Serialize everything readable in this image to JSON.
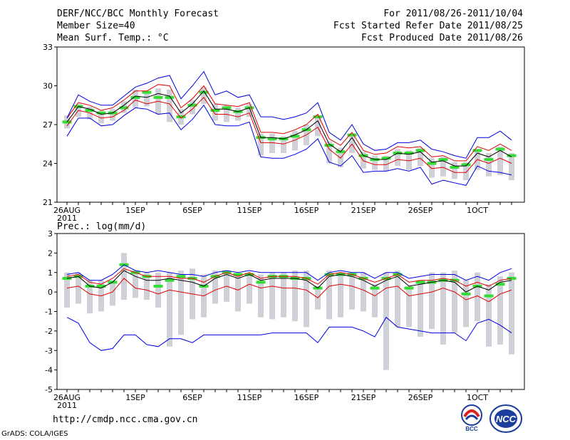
{
  "header": {
    "title": "DERF/NCC/BCC Monthly Forecast",
    "member": "Member Size=40",
    "variable": "Mean Surf. Temp.: °C",
    "period": "For 2011/08/26-2011/10/04",
    "start": "Fcst Started Refer Date 2011/08/25",
    "produced": "Fcst Produced Date 2011/08/26"
  },
  "footer": {
    "url": "http://cmdp.ncc.cma.gov.cn",
    "grads": "GrADS: COLA/IGES",
    "logo_bcc": "BCC",
    "logo_ncc": "NCC"
  },
  "colors": {
    "mean": "#000000",
    "spread": "#e00000",
    "extreme": "#0000e0",
    "box": "#d0d0d8",
    "clim": "#33dd33"
  },
  "chart_data": [
    {
      "type": "line",
      "title": "Mean Surf. Temp.: °C",
      "ylim": [
        21,
        33
      ],
      "yticks": [
        21,
        24,
        27,
        30,
        33
      ],
      "xtick_labels": [
        {
          "day": 0,
          "label": "26AUG",
          "sub": "2011"
        },
        {
          "day": 6,
          "label": "1SEP"
        },
        {
          "day": 11,
          "label": "6SEP"
        },
        {
          "day": 16,
          "label": "11SEP"
        },
        {
          "day": 21,
          "label": "16SEP"
        },
        {
          "day": 26,
          "label": "21SEP"
        },
        {
          "day": 31,
          "label": "26SEP"
        },
        {
          "day": 36,
          "label": "1OCT"
        }
      ],
      "series": [
        {
          "name": "ensemble mean",
          "role": "mean",
          "values": [
            27.2,
            28.4,
            28.2,
            27.8,
            27.9,
            28.5,
            29.2,
            29.1,
            29.4,
            29.2,
            27.9,
            28.6,
            29.6,
            28.2,
            28.2,
            28.0,
            28.3,
            26.0,
            26.0,
            25.9,
            26.2,
            26.6,
            27.3,
            25.5,
            24.9,
            26.0,
            24.6,
            24.3,
            24.3,
            24.8,
            24.7,
            24.9,
            24.1,
            24.2,
            23.8,
            23.8,
            24.8,
            24.5,
            25.0,
            24.5
          ]
        },
        {
          "name": "mean + spread",
          "role": "spread",
          "values": [
            27.5,
            28.7,
            28.5,
            28.1,
            28.3,
            28.9,
            29.6,
            29.6,
            30.1,
            30.0,
            28.3,
            29.0,
            30.0,
            28.6,
            28.5,
            28.4,
            28.7,
            26.4,
            26.4,
            26.3,
            26.6,
            27.0,
            27.8,
            25.9,
            25.4,
            26.4,
            25.0,
            24.7,
            24.8,
            25.3,
            25.2,
            25.3,
            24.5,
            24.6,
            24.2,
            24.2,
            25.3,
            25.0,
            25.5,
            25.0
          ]
        },
        {
          "name": "mean - spread",
          "role": "spread",
          "values": [
            26.9,
            28.1,
            27.9,
            27.5,
            27.6,
            28.1,
            28.9,
            28.6,
            28.8,
            28.6,
            27.5,
            28.2,
            29.1,
            27.8,
            27.8,
            27.6,
            27.9,
            25.6,
            25.6,
            25.5,
            25.8,
            26.2,
            26.8,
            25.1,
            24.4,
            25.5,
            24.2,
            23.9,
            23.9,
            24.3,
            24.2,
            24.4,
            23.6,
            23.7,
            23.3,
            23.3,
            24.3,
            24.0,
            24.4,
            24.0
          ]
        },
        {
          "name": "ensemble max",
          "role": "extreme",
          "values": [
            27.5,
            29.3,
            28.8,
            28.5,
            28.5,
            29.2,
            29.9,
            30.2,
            30.6,
            30.8,
            29.0,
            30.0,
            31.1,
            29.3,
            29.6,
            29.1,
            29.3,
            27.6,
            27.6,
            27.4,
            27.6,
            27.9,
            28.7,
            26.4,
            25.8,
            27.0,
            25.5,
            25.0,
            25.1,
            25.6,
            25.6,
            25.8,
            25.1,
            24.9,
            24.6,
            24.4,
            26.0,
            26.0,
            26.5,
            25.8
          ]
        },
        {
          "name": "ensemble min",
          "role": "extreme",
          "values": [
            26.1,
            27.5,
            27.5,
            26.9,
            27.0,
            27.7,
            28.3,
            28.2,
            27.8,
            27.9,
            26.6,
            27.4,
            28.5,
            27.0,
            26.9,
            26.9,
            27.2,
            24.5,
            24.4,
            24.4,
            24.7,
            25.1,
            25.9,
            24.1,
            23.8,
            24.6,
            23.3,
            23.4,
            23.4,
            23.6,
            23.4,
            23.7,
            22.4,
            22.7,
            22.5,
            22.3,
            23.8,
            23.4,
            23.3,
            23.1
          ]
        }
      ],
      "boxes": {
        "upper": [
          27.7,
          28.6,
          28.4,
          28.1,
          28.2,
          28.8,
          29.7,
          29.5,
          29.8,
          29.7,
          28.2,
          28.9,
          29.9,
          28.6,
          28.5,
          28.3,
          28.6,
          26.3,
          26.3,
          26.1,
          26.5,
          27.0,
          27.6,
          25.7,
          25.2,
          26.3,
          24.9,
          24.6,
          24.6,
          25.1,
          25.0,
          25.2,
          24.4,
          24.5,
          24.1,
          24.1,
          25.1,
          24.8,
          25.3,
          24.8
        ],
        "lower": [
          26.7,
          27.6,
          27.4,
          27.1,
          27.3,
          27.9,
          28.3,
          28.4,
          27.8,
          27.2,
          27.0,
          27.8,
          28.6,
          27.3,
          27.2,
          27.3,
          27.6,
          24.6,
          24.8,
          24.8,
          25.0,
          25.4,
          26.1,
          24.0,
          23.7,
          24.8,
          23.6,
          23.5,
          23.4,
          23.8,
          23.5,
          23.8,
          22.9,
          23.0,
          22.8,
          22.7,
          23.5,
          23.0,
          23.1,
          22.7
        ]
      },
      "clim": [
        27.2,
        28.4,
        28.1,
        27.9,
        27.9,
        28.3,
        29.1,
        29.5,
        29.1,
        29.1,
        27.6,
        28.5,
        29.5,
        28.1,
        28.3,
        28.0,
        28.3,
        26.0,
        25.9,
        25.9,
        26.1,
        26.6,
        27.6,
        25.4,
        24.9,
        26.2,
        24.6,
        24.3,
        24.4,
        24.8,
        24.8,
        25.0,
        24.0,
        24.3,
        23.7,
        23.9,
        25.0,
        24.3,
        25.1,
        24.6
      ]
    },
    {
      "type": "line",
      "title": "Prec.: log(mm/d)",
      "ylim": [
        -5,
        3
      ],
      "yticks": [
        -5,
        -4,
        -3,
        -2,
        -1,
        0,
        1,
        2,
        3
      ],
      "xtick_labels": [
        {
          "day": 0,
          "label": "26AUG",
          "sub": "2011"
        },
        {
          "day": 6,
          "label": "1SEP"
        },
        {
          "day": 11,
          "label": "6SEP"
        },
        {
          "day": 16,
          "label": "11SEP"
        },
        {
          "day": 21,
          "label": "16SEP"
        },
        {
          "day": 26,
          "label": "21SEP"
        },
        {
          "day": 31,
          "label": "26SEP"
        },
        {
          "day": 36,
          "label": "1OCT"
        }
      ],
      "series": [
        {
          "name": "ensemble mean",
          "role": "mean",
          "values": [
            0.7,
            0.8,
            0.3,
            0.2,
            0.5,
            1.1,
            0.8,
            0.6,
            0.6,
            0.7,
            0.6,
            0.5,
            0.3,
            0.7,
            0.9,
            0.7,
            0.9,
            0.6,
            0.7,
            0.7,
            0.7,
            0.6,
            0.2,
            0.8,
            0.9,
            0.8,
            0.6,
            0.3,
            0.6,
            0.8,
            0.3,
            0.4,
            0.5,
            0.6,
            0.5,
            0.0,
            0.3,
            0.1,
            0.5,
            0.6
          ]
        },
        {
          "name": "mean + spread",
          "role": "spread",
          "values": [
            0.8,
            0.9,
            0.5,
            0.4,
            0.7,
            1.2,
            1.0,
            0.8,
            0.8,
            0.8,
            0.7,
            0.7,
            0.5,
            0.8,
            1.0,
            0.8,
            1.0,
            0.7,
            0.8,
            0.8,
            0.8,
            0.7,
            0.4,
            0.9,
            1.0,
            0.9,
            0.7,
            0.5,
            0.7,
            0.9,
            0.5,
            0.6,
            0.6,
            0.7,
            0.6,
            0.3,
            0.5,
            0.3,
            0.6,
            0.7
          ]
        },
        {
          "name": "mean - spread",
          "role": "spread",
          "values": [
            0.2,
            0.3,
            -0.1,
            -0.2,
            0.0,
            0.7,
            0.2,
            0.1,
            -0.1,
            0.1,
            0.0,
            -0.1,
            -0.2,
            0.1,
            0.3,
            0.1,
            0.4,
            0.2,
            0.3,
            0.2,
            0.2,
            0.1,
            -0.3,
            0.3,
            0.4,
            0.3,
            0.1,
            -0.2,
            0.2,
            0.3,
            -0.2,
            -0.1,
            0.0,
            0.2,
            0.0,
            -0.4,
            -0.2,
            -0.5,
            -0.1,
            0.1
          ]
        },
        {
          "name": "ensemble max",
          "role": "extreme",
          "values": [
            0.9,
            1.0,
            0.6,
            0.6,
            0.9,
            1.4,
            1.1,
            1.0,
            1.1,
            1.0,
            0.9,
            0.9,
            0.8,
            1.0,
            1.1,
            1.0,
            1.1,
            1.0,
            1.0,
            1.0,
            1.0,
            1.0,
            0.6,
            1.0,
            1.1,
            1.0,
            1.0,
            0.7,
            1.0,
            1.0,
            0.7,
            0.8,
            0.9,
            0.9,
            0.9,
            0.6,
            0.8,
            0.6,
            1.0,
            1.2
          ]
        },
        {
          "name": "ensemble min",
          "role": "extreme",
          "values": [
            -1.3,
            -1.6,
            -2.6,
            -3.0,
            -2.9,
            -2.2,
            -2.2,
            -2.7,
            -2.8,
            -2.4,
            -2.4,
            -2.6,
            -2.2,
            -2.2,
            -2.2,
            -2.2,
            -2.2,
            -2.2,
            -2.1,
            -2.1,
            -2.1,
            -2.1,
            -2.6,
            -1.8,
            -1.8,
            -1.8,
            -2.0,
            -2.3,
            -1.3,
            -1.8,
            -1.9,
            -2.0,
            -2.1,
            -2.1,
            -2.1,
            -2.5,
            -1.6,
            -1.4,
            -1.7,
            -2.1
          ]
        }
      ],
      "boxes": {
        "upper": [
          1.0,
          1.0,
          0.6,
          0.6,
          0.6,
          2.0,
          1.1,
          1.0,
          1.0,
          1.0,
          1.1,
          1.2,
          0.9,
          1.1,
          1.1,
          0.9,
          0.9,
          0.9,
          1.0,
          1.0,
          1.1,
          1.1,
          0.3,
          1.1,
          1.0,
          1.0,
          1.0,
          0.4,
          1.0,
          1.1,
          0.3,
          0.6,
          1.0,
          1.0,
          1.1,
          0.6,
          1.0,
          0.4,
          0.8,
          1.0
        ],
        "lower": [
          -0.8,
          -0.6,
          -1.1,
          -1.0,
          -0.7,
          -0.4,
          -0.3,
          -0.4,
          -0.8,
          -2.8,
          -2.2,
          -1.4,
          -1.3,
          -0.6,
          -0.5,
          -1.0,
          -0.6,
          -1.3,
          -1.4,
          -1.3,
          -1.5,
          -1.8,
          -0.9,
          -1.4,
          -1.3,
          -0.9,
          -1.0,
          -1.3,
          -4.0,
          -1.8,
          -1.8,
          -2.3,
          -1.9,
          -2.7,
          -2.1,
          -1.8,
          -1.5,
          -2.8,
          -2.7,
          -3.2
        ]
      },
      "clim": [
        0.7,
        0.8,
        0.3,
        0.3,
        0.5,
        1.4,
        1.0,
        0.8,
        0.3,
        0.6,
        0.8,
        0.7,
        0.3,
        0.8,
        1.0,
        0.9,
        0.9,
        0.5,
        0.8,
        0.8,
        0.7,
        0.7,
        0.2,
        0.9,
        0.9,
        0.9,
        0.7,
        0.2,
        0.7,
        0.9,
        0.2,
        0.5,
        0.5,
        0.6,
        0.6,
        -0.1,
        0.3,
        -0.2,
        0.4,
        0.7
      ]
    }
  ]
}
